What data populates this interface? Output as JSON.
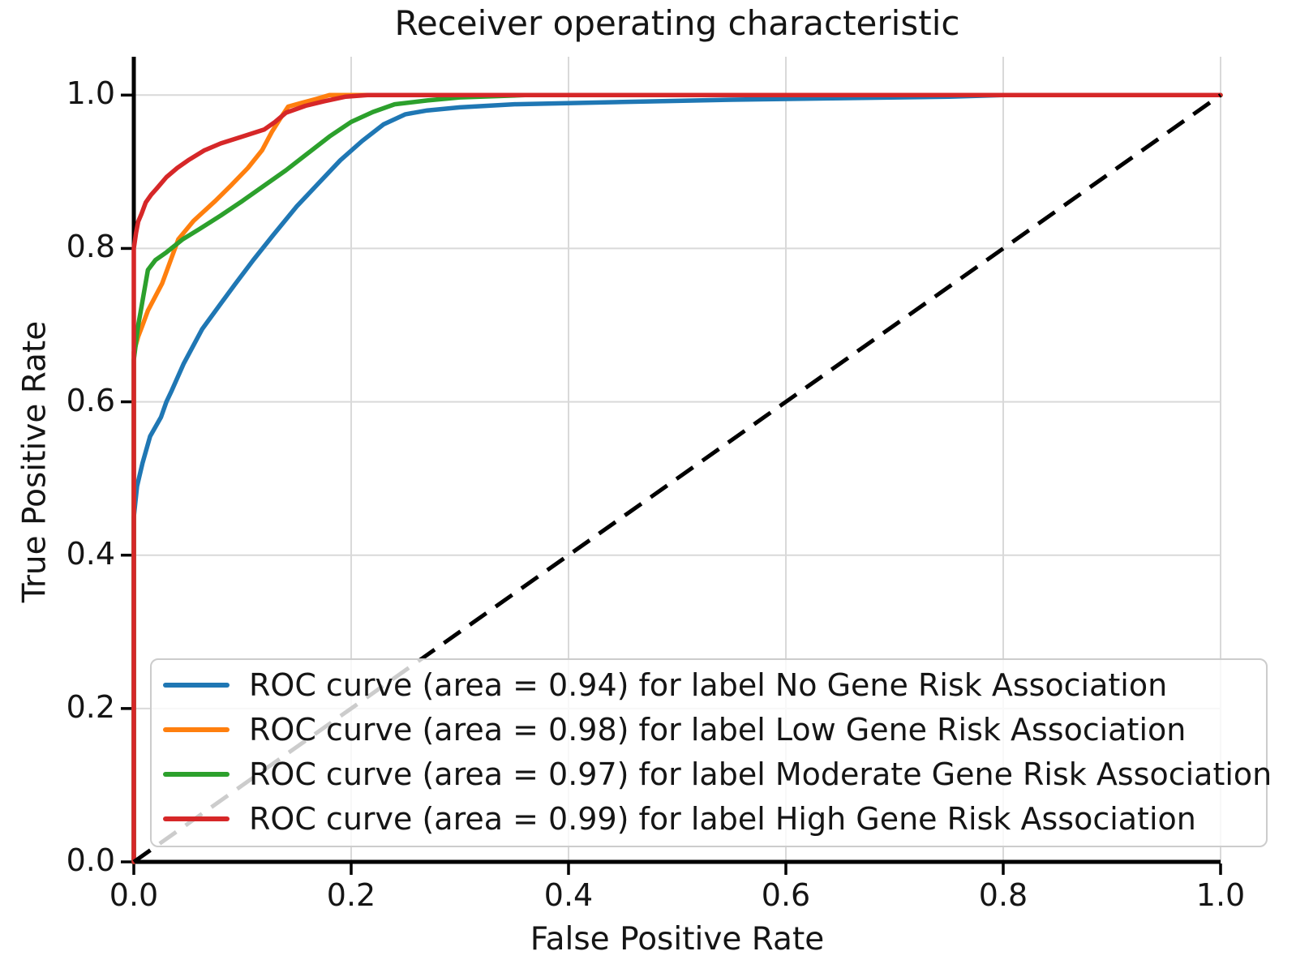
{
  "title": "Receiver operating characteristic",
  "axes": {
    "xlabel": "False Positive Rate",
    "ylabel": "True Positive Rate",
    "xtick_labels": [
      "0.0",
      "0.2",
      "0.4",
      "0.6",
      "0.8",
      "1.0"
    ],
    "ytick_labels": [
      "0.0",
      "0.2",
      "0.4",
      "0.6",
      "0.8",
      "1.0"
    ]
  },
  "colors": {
    "grid": "#d9d9d9",
    "spine": "#000000",
    "text": "#151515",
    "diagonal": "#000000",
    "legend_border": "#cccccc"
  },
  "chart_data": {
    "type": "line",
    "title": "Receiver operating characteristic",
    "xlabel": "False Positive Rate",
    "ylabel": "True Positive Rate",
    "xlim": [
      0.0,
      1.0
    ],
    "ylim": [
      0.0,
      1.05
    ],
    "xticks": [
      0.0,
      0.2,
      0.4,
      0.6,
      0.8,
      1.0
    ],
    "yticks": [
      0.0,
      0.2,
      0.4,
      0.6,
      0.8,
      1.0
    ],
    "grid": true,
    "legend_position": "lower left",
    "series": [
      {
        "name": "ROC curve (area = 0.94) for label No Gene Risk Association",
        "auc": 0.94,
        "color": "#1f77b4",
        "points": [
          [
            0,
            0
          ],
          [
            0,
            0.45
          ],
          [
            0.003,
            0.49
          ],
          [
            0.008,
            0.52
          ],
          [
            0.015,
            0.555
          ],
          [
            0.025,
            0.58
          ],
          [
            0.03,
            0.6
          ],
          [
            0.035,
            0.615
          ],
          [
            0.046,
            0.65
          ],
          [
            0.063,
            0.695
          ],
          [
            0.08,
            0.728
          ],
          [
            0.093,
            0.753
          ],
          [
            0.11,
            0.785
          ],
          [
            0.128,
            0.817
          ],
          [
            0.15,
            0.855
          ],
          [
            0.17,
            0.885
          ],
          [
            0.19,
            0.915
          ],
          [
            0.21,
            0.94
          ],
          [
            0.23,
            0.962
          ],
          [
            0.25,
            0.975
          ],
          [
            0.27,
            0.98
          ],
          [
            0.3,
            0.984
          ],
          [
            0.35,
            0.988
          ],
          [
            0.45,
            0.991
          ],
          [
            0.55,
            0.994
          ],
          [
            0.65,
            0.996
          ],
          [
            0.75,
            0.998
          ],
          [
            0.8,
            1.0
          ],
          [
            1.0,
            1.0
          ]
        ]
      },
      {
        "name": "ROC curve (area = 0.98) for label Low Gene Risk Association",
        "auc": 0.98,
        "color": "#ff7f0e",
        "points": [
          [
            0,
            0
          ],
          [
            0,
            0.665
          ],
          [
            0.004,
            0.685
          ],
          [
            0.0075,
            0.698
          ],
          [
            0.013,
            0.719
          ],
          [
            0.026,
            0.754
          ],
          [
            0.041,
            0.812
          ],
          [
            0.055,
            0.836
          ],
          [
            0.075,
            0.862
          ],
          [
            0.09,
            0.883
          ],
          [
            0.105,
            0.905
          ],
          [
            0.118,
            0.928
          ],
          [
            0.127,
            0.952
          ],
          [
            0.135,
            0.97
          ],
          [
            0.142,
            0.985
          ],
          [
            0.155,
            0.99
          ],
          [
            0.168,
            0.995
          ],
          [
            0.18,
            1.0
          ],
          [
            1.0,
            1.0
          ]
        ]
      },
      {
        "name": "ROC curve (area = 0.97) for label Moderate Gene Risk Association",
        "auc": 0.97,
        "color": "#2ca02c",
        "points": [
          [
            0,
            0
          ],
          [
            0,
            0.655
          ],
          [
            0.004,
            0.7
          ],
          [
            0.006,
            0.715
          ],
          [
            0.009,
            0.74
          ],
          [
            0.013,
            0.772
          ],
          [
            0.02,
            0.785
          ],
          [
            0.03,
            0.795
          ],
          [
            0.045,
            0.812
          ],
          [
            0.06,
            0.825
          ],
          [
            0.08,
            0.843
          ],
          [
            0.1,
            0.862
          ],
          [
            0.12,
            0.882
          ],
          [
            0.14,
            0.902
          ],
          [
            0.16,
            0.924
          ],
          [
            0.18,
            0.946
          ],
          [
            0.2,
            0.965
          ],
          [
            0.22,
            0.978
          ],
          [
            0.24,
            0.988
          ],
          [
            0.27,
            0.993
          ],
          [
            0.3,
            0.997
          ],
          [
            0.36,
            1.0
          ],
          [
            1.0,
            1.0
          ]
        ]
      },
      {
        "name": "ROC curve (area = 0.99) for label High Gene Risk Association",
        "auc": 0.99,
        "color": "#d62728",
        "points": [
          [
            0,
            0
          ],
          [
            0,
            0.8
          ],
          [
            0.002,
            0.82
          ],
          [
            0.004,
            0.835
          ],
          [
            0.007,
            0.845
          ],
          [
            0.011,
            0.86
          ],
          [
            0.016,
            0.87
          ],
          [
            0.021,
            0.878
          ],
          [
            0.03,
            0.893
          ],
          [
            0.04,
            0.905
          ],
          [
            0.05,
            0.915
          ],
          [
            0.065,
            0.928
          ],
          [
            0.08,
            0.937
          ],
          [
            0.1,
            0.946
          ],
          [
            0.12,
            0.955
          ],
          [
            0.13,
            0.965
          ],
          [
            0.14,
            0.977
          ],
          [
            0.158,
            0.986
          ],
          [
            0.175,
            0.992
          ],
          [
            0.195,
            0.998
          ],
          [
            0.215,
            1.0
          ],
          [
            1.0,
            1.0
          ]
        ]
      }
    ],
    "diagonal": {
      "name": "chance-line",
      "style": "dashed",
      "color": "#000000",
      "points": [
        [
          0,
          0
        ],
        [
          1,
          1
        ]
      ]
    }
  }
}
